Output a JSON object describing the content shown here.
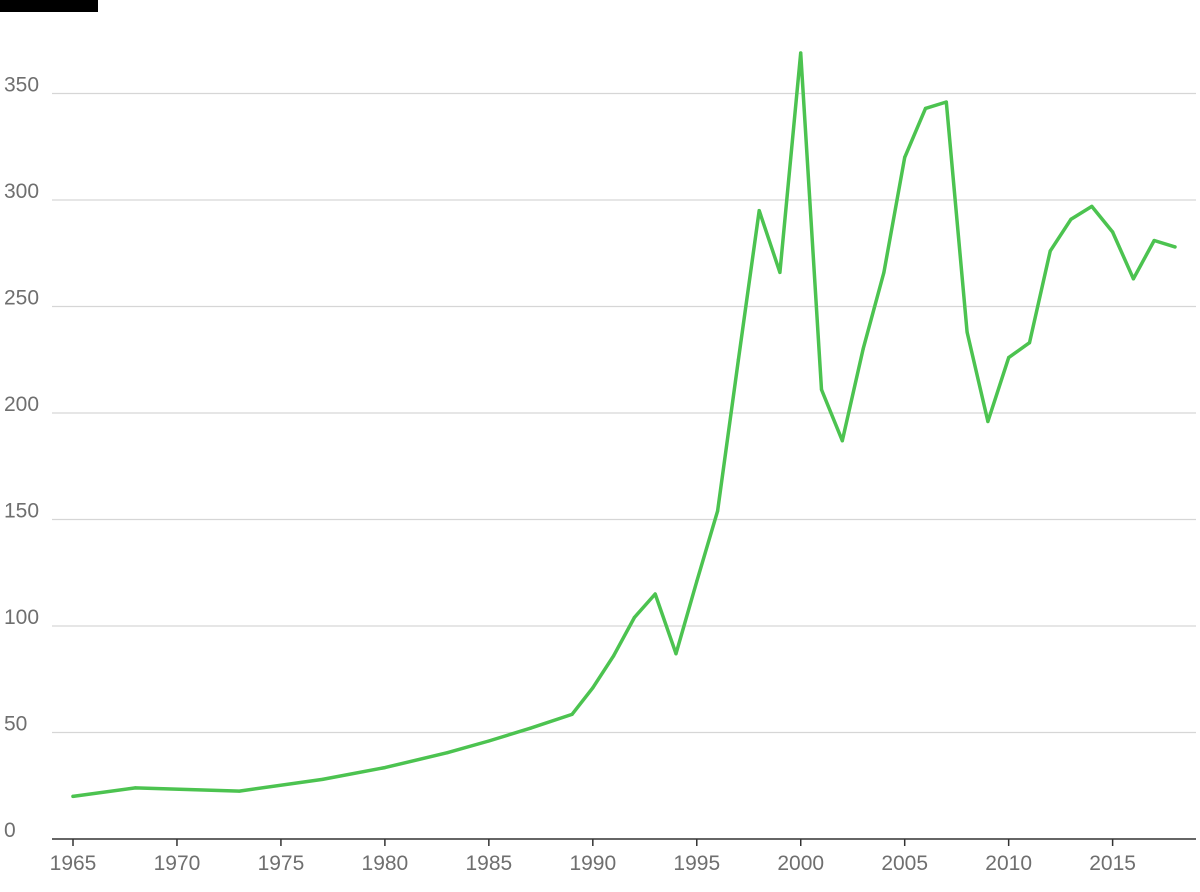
{
  "chart_data": {
    "type": "line",
    "title": "",
    "xlabel": "",
    "ylabel": "",
    "xlim": [
      1965,
      2018
    ],
    "ylim": [
      0,
      375
    ],
    "grid": true,
    "legend": "none",
    "line_color": "#4cc350",
    "x_ticks": [
      1965,
      1970,
      1975,
      1980,
      1985,
      1990,
      1995,
      2000,
      2005,
      2010,
      2015
    ],
    "y_ticks": [
      0,
      50,
      100,
      150,
      200,
      250,
      300,
      350
    ],
    "series": [
      {
        "name": "",
        "x": [
          1965,
          1968,
          1973,
          1977,
          1980,
          1983,
          1985,
          1987,
          1989,
          1990,
          1991,
          1992,
          1993,
          1994,
          1995,
          1996,
          1997,
          1998,
          1999,
          2000,
          2001,
          2002,
          2003,
          2004,
          2005,
          2006,
          2007,
          2008,
          2009,
          2010,
          2011,
          2012,
          2013,
          2014,
          2015,
          2016,
          2017,
          2018
        ],
        "values": [
          20,
          24,
          22.5,
          28,
          33.5,
          40.5,
          46,
          52,
          58.5,
          71,
          86,
          104,
          115,
          87,
          121,
          154,
          225,
          295,
          266,
          369,
          211,
          187,
          230,
          266,
          320,
          343,
          346,
          238,
          196,
          226,
          233,
          276,
          291,
          297,
          285,
          263,
          281,
          278
        ]
      }
    ]
  }
}
